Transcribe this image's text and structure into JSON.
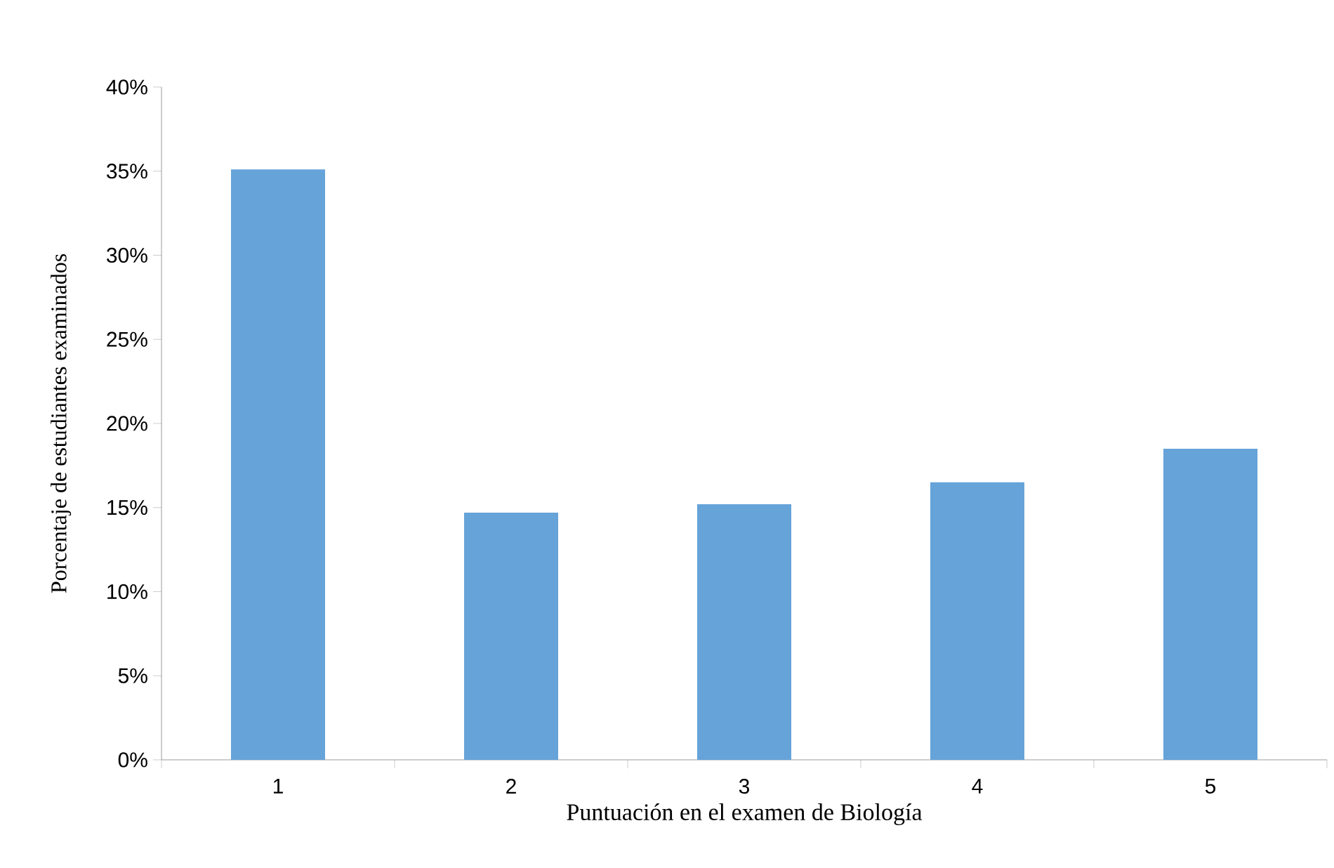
{
  "chart_data": {
    "type": "bar",
    "xlabel": "Puntuación en el examen de Biología",
    "ylabel": "Porcentaje de estudiantes examinados",
    "categories": [
      "1",
      "2",
      "3",
      "4",
      "5"
    ],
    "values": [
      35.1,
      14.7,
      15.2,
      16.5,
      18.5
    ],
    "color": "#66a3d9",
    "ylim": [
      0,
      40
    ],
    "yticks": [
      {
        "value": 0,
        "label": "0%"
      },
      {
        "value": 5,
        "label": "5%"
      },
      {
        "value": 10,
        "label": "10%"
      },
      {
        "value": 15,
        "label": "15%"
      },
      {
        "value": 20,
        "label": "20%"
      },
      {
        "value": 25,
        "label": "25%"
      },
      {
        "value": 30,
        "label": "30%"
      },
      {
        "value": 35,
        "label": "35%"
      },
      {
        "value": 40,
        "label": "40%"
      }
    ],
    "grid": false
  }
}
